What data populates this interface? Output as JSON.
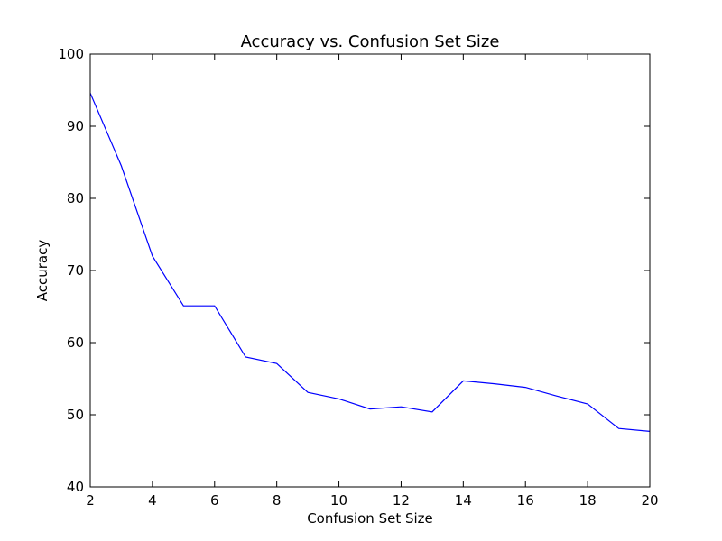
{
  "chart_data": {
    "type": "line",
    "title": "Accuracy vs. Confusion Set Size",
    "xlabel": "Confusion Set Size",
    "ylabel": "Accuracy",
    "xlim": [
      2,
      20
    ],
    "ylim": [
      40,
      100
    ],
    "xticks": [
      2,
      4,
      6,
      8,
      10,
      12,
      14,
      16,
      18,
      20
    ],
    "yticks": [
      40,
      50,
      60,
      70,
      80,
      90,
      100
    ],
    "grid": false,
    "series": [
      {
        "color": "#0000ff",
        "x": [
          2,
          3,
          4,
          5,
          6,
          7,
          8,
          9,
          10,
          11,
          12,
          13,
          14,
          15,
          16,
          17,
          18,
          19,
          20
        ],
        "y": [
          94.6,
          84.5,
          72.0,
          65.1,
          65.1,
          58.0,
          57.1,
          53.1,
          52.2,
          50.8,
          51.1,
          50.4,
          54.7,
          54.3,
          53.8,
          52.6,
          51.5,
          48.1,
          47.7
        ]
      }
    ]
  }
}
